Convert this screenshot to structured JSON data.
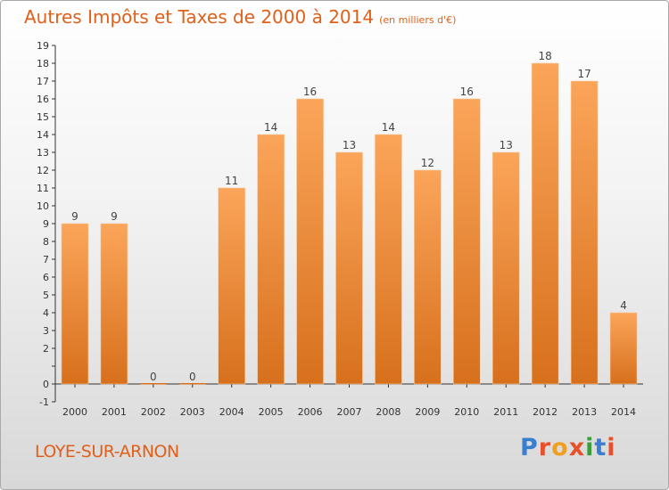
{
  "title": "Autres Impôts et Taxes de 2000 à 2014",
  "unit_label": "(en milliers d'€)",
  "commune": "LOYE-SUR-ARNON",
  "logo": "Proxiti",
  "colors": {
    "bar_light": "#fba55a",
    "bar_dark": "#d7701c",
    "title": "#e0601a",
    "axis": "#333333"
  },
  "chart_data": {
    "type": "bar",
    "categories": [
      "2000",
      "2001",
      "2002",
      "2003",
      "2004",
      "2005",
      "2006",
      "2007",
      "2008",
      "2009",
      "2010",
      "2011",
      "2012",
      "2013",
      "2014"
    ],
    "values": [
      9,
      9,
      0,
      0,
      11,
      14,
      16,
      13,
      14,
      12,
      16,
      13,
      18,
      17,
      4
    ],
    "data_labels": [
      "9",
      "9",
      "0",
      "0",
      "11",
      "14",
      "16",
      "13",
      "14",
      "12",
      "16",
      "13",
      "18",
      "17",
      "4"
    ],
    "y_ticks": [
      -1,
      0,
      1,
      2,
      3,
      4,
      5,
      6,
      7,
      8,
      9,
      10,
      11,
      12,
      13,
      14,
      15,
      16,
      17,
      18,
      19
    ],
    "y_tick_labels": [
      "-1",
      "0",
      "",
      "2",
      "3",
      "4",
      "5",
      "6",
      "7",
      "8",
      "9",
      "10",
      "11",
      "12",
      "13",
      "14",
      "15",
      "16",
      "17",
      "18",
      "19"
    ],
    "ylim": [
      -1,
      19
    ],
    "title": "Autres Impôts et Taxes de 2000 à 2014",
    "xlabel": "",
    "ylabel": "",
    "grid": false,
    "legend": "none"
  }
}
